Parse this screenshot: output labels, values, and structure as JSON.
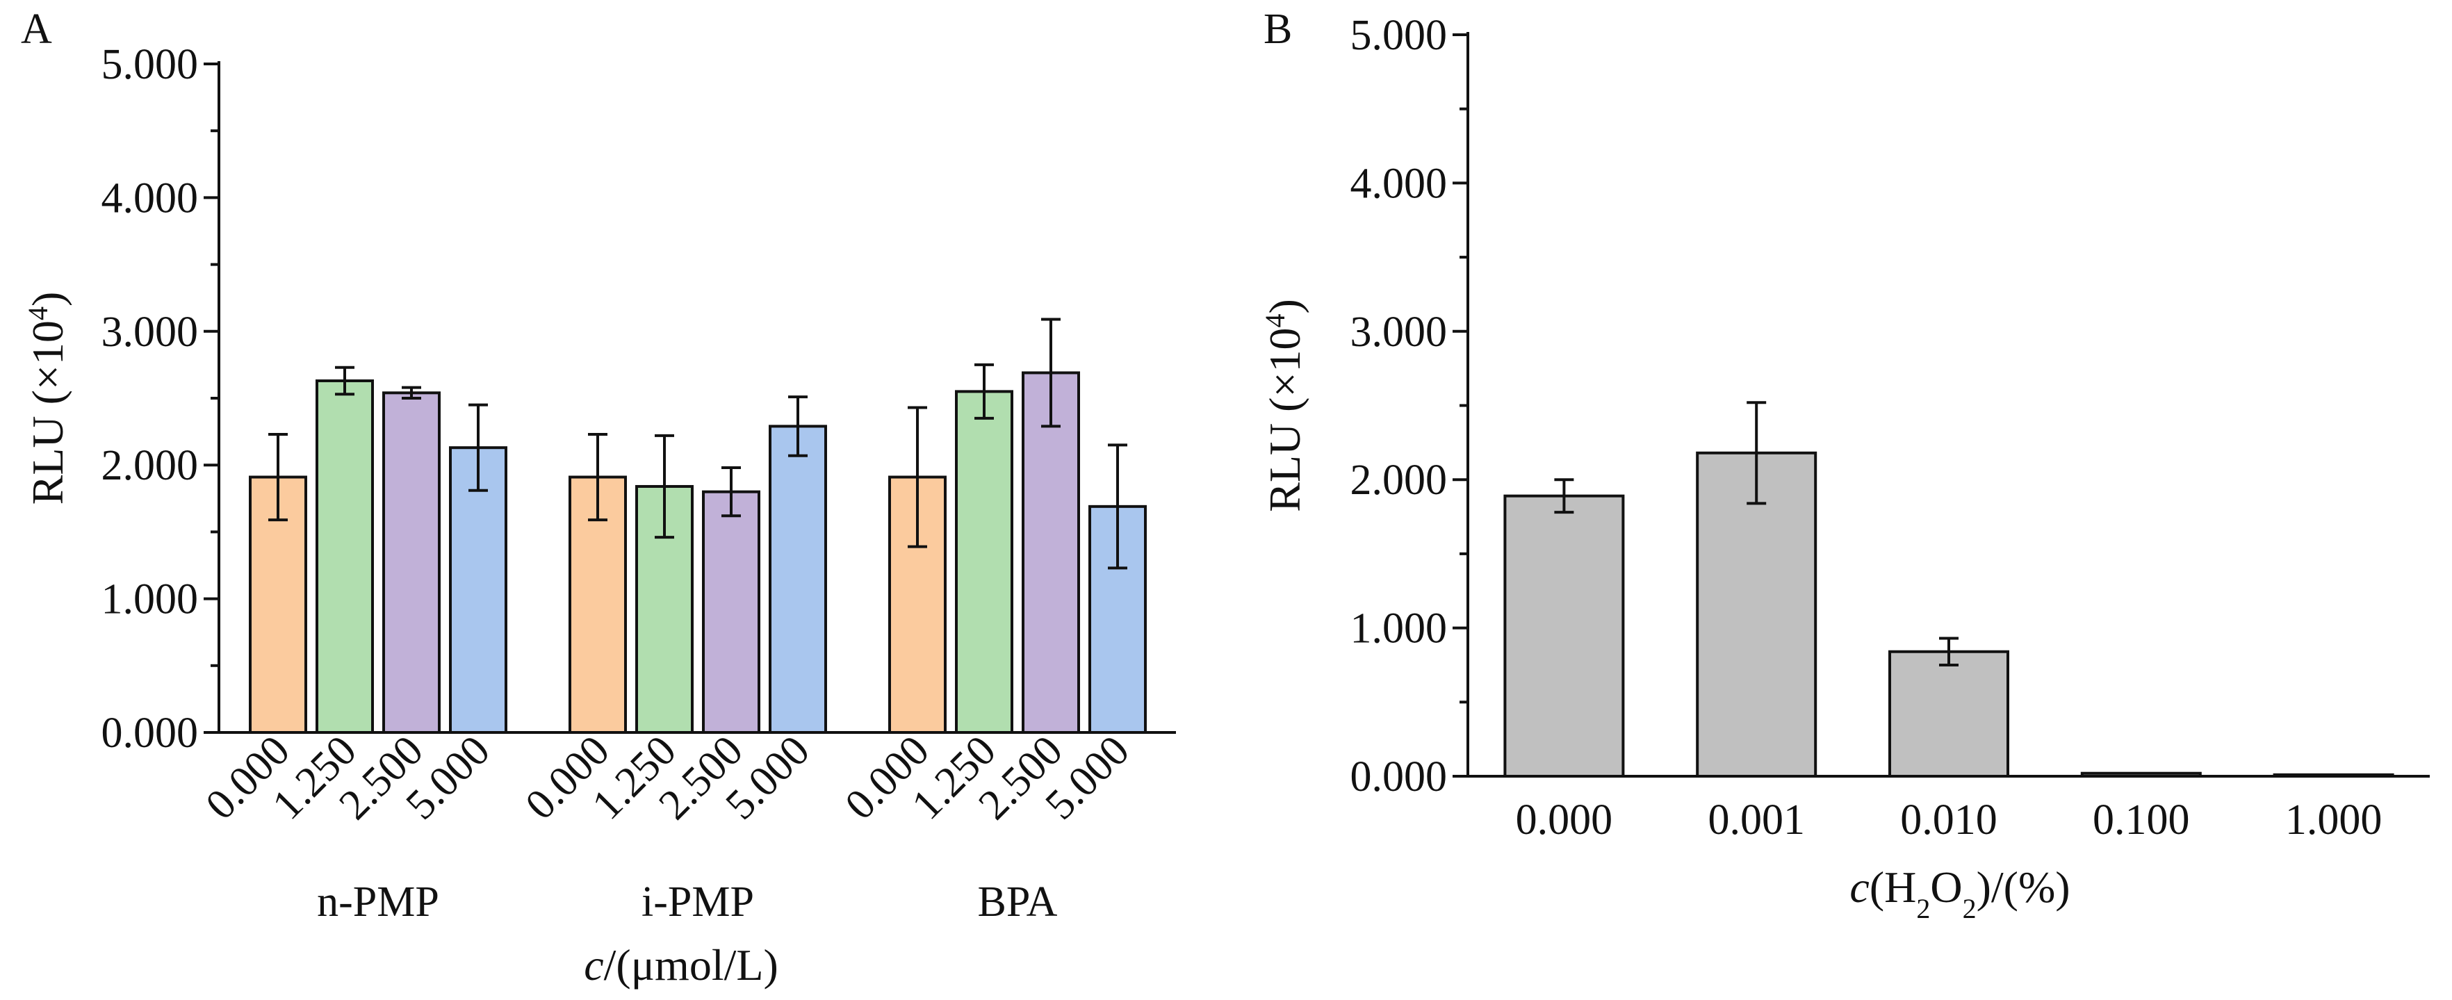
{
  "chart_data": [
    {
      "panel_label": "A",
      "type": "bar",
      "groups": [
        "n-PMP",
        "i-PMP",
        "BPA"
      ],
      "categories": [
        "0.000",
        "1.250",
        "2.500",
        "5.000"
      ],
      "series": [
        {
          "group": "n-PMP",
          "values": [
            1.91,
            2.63,
            2.54,
            2.13
          ],
          "errors": [
            0.32,
            0.1,
            0.04,
            0.32
          ]
        },
        {
          "group": "i-PMP",
          "values": [
            1.91,
            1.84,
            1.8,
            2.29
          ],
          "errors": [
            0.32,
            0.38,
            0.18,
            0.22
          ]
        },
        {
          "group": "BPA",
          "values": [
            1.91,
            2.55,
            2.69,
            1.69
          ],
          "errors": [
            0.52,
            0.2,
            0.4,
            0.46
          ]
        }
      ],
      "category_colors": [
        "#FBCB9E",
        "#B1DEAF",
        "#C1B1D8",
        "#A9C6EE"
      ],
      "ylim": [
        0,
        5
      ],
      "yticks": [
        "0.000",
        "1.000",
        "2.000",
        "3.000",
        "4.000",
        "5.000"
      ],
      "ylabel_main": "RLU (×10",
      "ylabel_sup": "4",
      "ylabel_end": ")",
      "xlabel_italic": "c",
      "xlabel_rest": "/(μmol/L)",
      "grid": false,
      "legend": "none"
    },
    {
      "panel_label": "B",
      "type": "bar",
      "categories": [
        "0.000",
        "0.001",
        "0.010",
        "0.100",
        "1.000"
      ],
      "values": [
        1.89,
        2.18,
        0.84,
        0.02,
        0.01
      ],
      "errors": [
        0.11,
        0.34,
        0.09,
        0.0,
        0.0
      ],
      "bar_color": "#C0C0C0",
      "ylim": [
        0,
        5
      ],
      "yticks": [
        "0.000",
        "1.000",
        "2.000",
        "3.000",
        "4.000",
        "5.000"
      ],
      "ylabel_main": "RLU (×10",
      "ylabel_sup": "4",
      "ylabel_end": ")",
      "xlabel_italic": "c",
      "xlabel_parts": [
        "(H",
        "2",
        "O",
        "2",
        ")/(%)"
      ],
      "grid": false,
      "legend": "none"
    }
  ]
}
